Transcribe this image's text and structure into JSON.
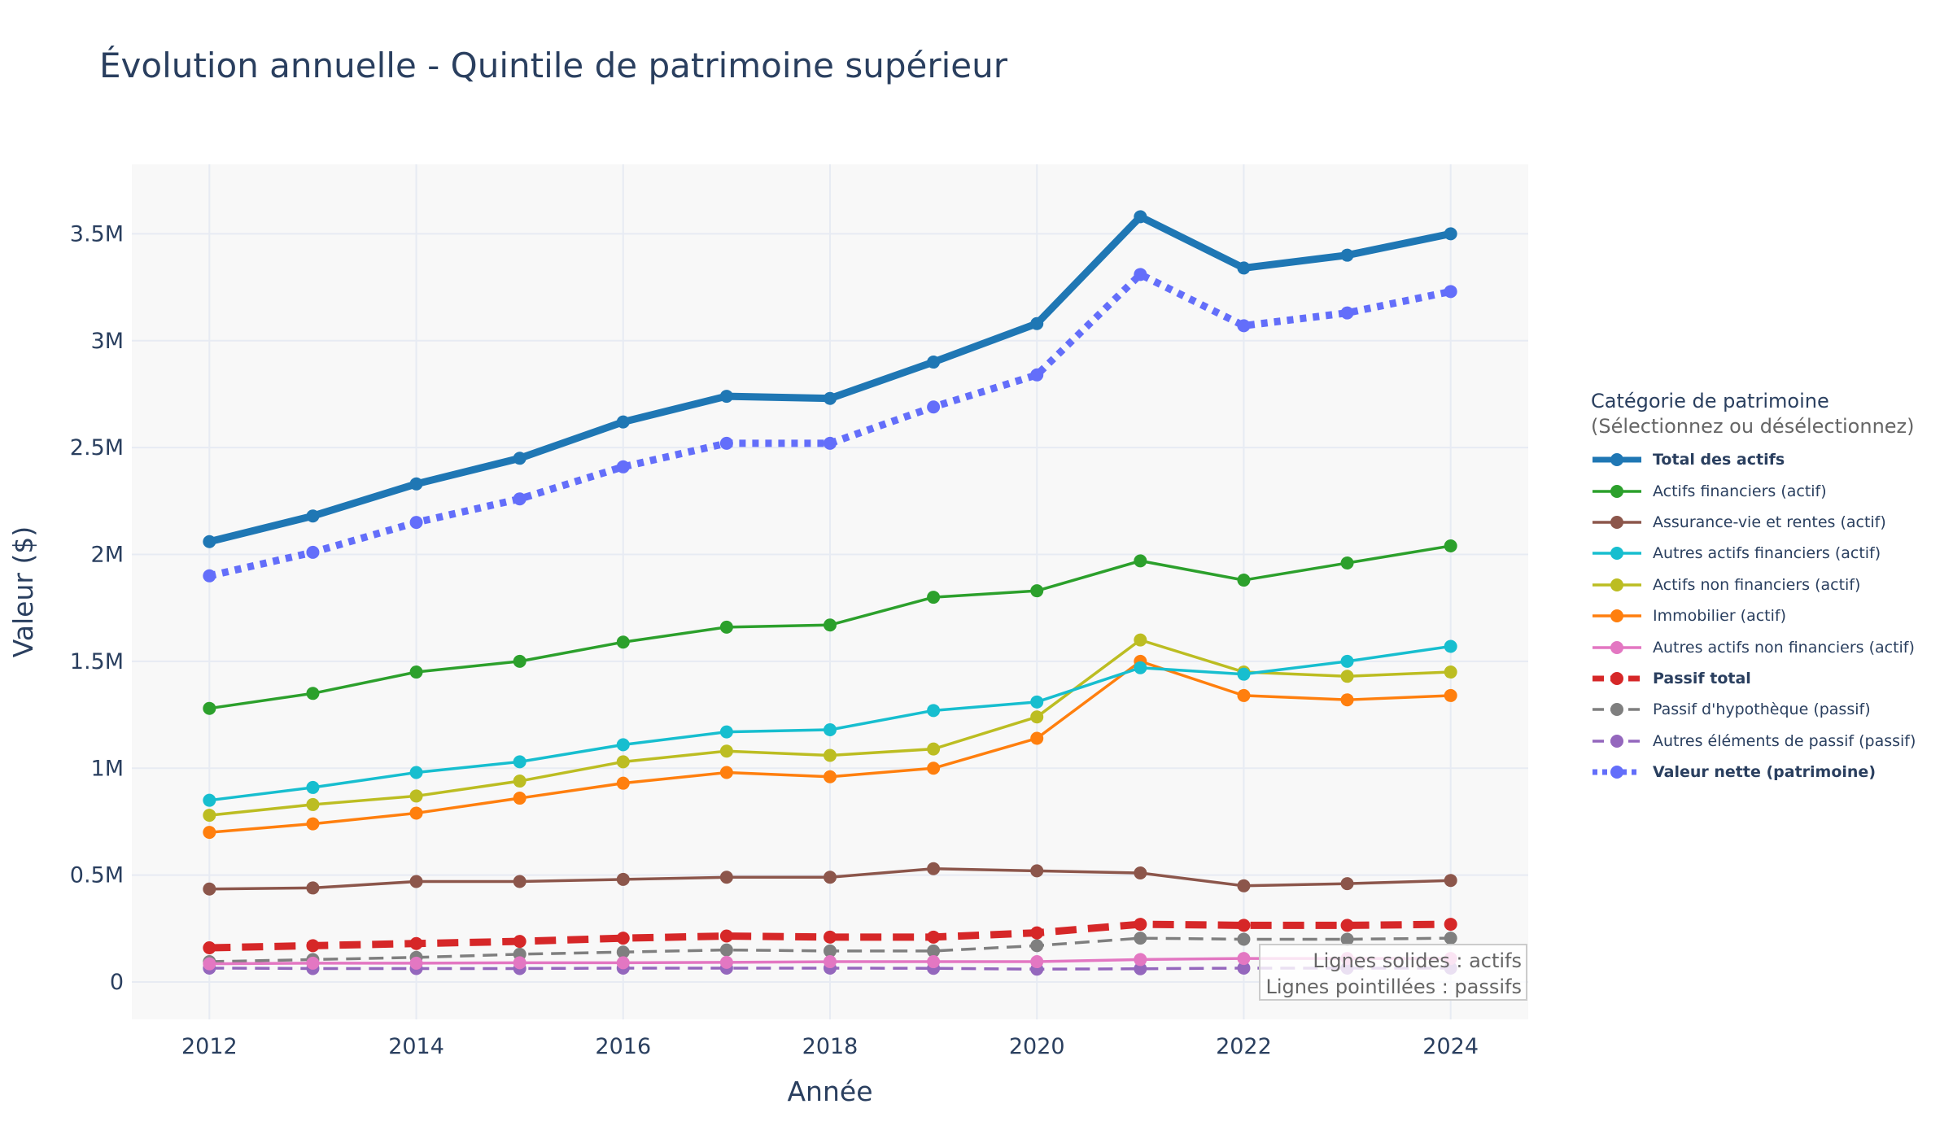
{
  "chart_data": {
    "type": "line",
    "title": "Évolution annuelle - Quintile de patrimoine supérieur",
    "xlabel": "Année",
    "ylabel": "Valeur ($)",
    "xlim": [
      2011.25,
      2024.75
    ],
    "ylim": [
      -175000,
      3825000
    ],
    "x": [
      2012,
      2013,
      2014,
      2015,
      2016,
      2017,
      2018,
      2019,
      2020,
      2021,
      2022,
      2023,
      2024
    ],
    "x_ticks": [
      2012,
      2014,
      2016,
      2018,
      2020,
      2022,
      2024
    ],
    "y_ticks": [
      {
        "value": 0,
        "label": "0"
      },
      {
        "value": 500000,
        "label": "0.5M"
      },
      {
        "value": 1000000,
        "label": "1M"
      },
      {
        "value": 1500000,
        "label": "1.5M"
      },
      {
        "value": 2000000,
        "label": "2M"
      },
      {
        "value": 2500000,
        "label": "2.5M"
      },
      {
        "value": 3000000,
        "label": "3M"
      },
      {
        "value": 3500000,
        "label": "3.5M"
      }
    ],
    "grid": true,
    "legend_title": "Catégorie de patrimoine",
    "legend_subtitle": "(Sélectionnez ou désélectionnez)",
    "legend_position": "right",
    "annotation": [
      "Lignes solides : actifs",
      "Lignes pointillées : passifs"
    ],
    "series": [
      {
        "name": "Total des actifs",
        "color": "#1f77b4",
        "dash": "solid",
        "bold": true,
        "values": [
          2060000,
          2180000,
          2330000,
          2450000,
          2620000,
          2740000,
          2730000,
          2900000,
          3080000,
          3580000,
          3340000,
          3400000,
          3500000
        ]
      },
      {
        "name": "Actifs financiers (actif)",
        "color": "#2ca02c",
        "dash": "solid",
        "bold": false,
        "values": [
          1280000,
          1350000,
          1450000,
          1500000,
          1590000,
          1660000,
          1670000,
          1800000,
          1830000,
          1970000,
          1880000,
          1960000,
          2040000
        ]
      },
      {
        "name": "Assurance-vie et rentes (actif)",
        "color": "#8c564b",
        "dash": "solid",
        "bold": false,
        "values": [
          435000,
          440000,
          470000,
          470000,
          480000,
          490000,
          490000,
          530000,
          520000,
          510000,
          450000,
          460000,
          475000
        ]
      },
      {
        "name": "Autres actifs financiers (actif)",
        "color": "#17becf",
        "dash": "solid",
        "bold": false,
        "values": [
          850000,
          910000,
          980000,
          1030000,
          1110000,
          1170000,
          1180000,
          1270000,
          1310000,
          1470000,
          1440000,
          1500000,
          1570000
        ]
      },
      {
        "name": "Actifs non financiers (actif)",
        "color": "#bcbd22",
        "dash": "solid",
        "bold": false,
        "values": [
          780000,
          830000,
          870000,
          940000,
          1030000,
          1080000,
          1060000,
          1090000,
          1240000,
          1600000,
          1450000,
          1430000,
          1450000
        ]
      },
      {
        "name": "Immobilier (actif)",
        "color": "#ff7f0e",
        "dash": "solid",
        "bold": false,
        "values": [
          700000,
          740000,
          790000,
          860000,
          930000,
          980000,
          960000,
          1000000,
          1140000,
          1500000,
          1340000,
          1320000,
          1340000
        ]
      },
      {
        "name": "Autres actifs non financiers (actif)",
        "color": "#e377c2",
        "dash": "solid",
        "bold": false,
        "values": [
          85000,
          88000,
          88000,
          90000,
          90000,
          92000,
          95000,
          95000,
          95000,
          105000,
          110000,
          110000,
          110000
        ]
      },
      {
        "name": "Passif total",
        "color": "#d62728",
        "dash": "dash",
        "bold": true,
        "values": [
          160000,
          170000,
          180000,
          190000,
          205000,
          215000,
          210000,
          210000,
          230000,
          270000,
          265000,
          265000,
          270000
        ]
      },
      {
        "name": "Passif d'hypothèque (passif)",
        "color": "#7f7f7f",
        "dash": "dash",
        "bold": false,
        "values": [
          95000,
          105000,
          115000,
          130000,
          140000,
          150000,
          145000,
          145000,
          170000,
          205000,
          200000,
          200000,
          205000
        ]
      },
      {
        "name": "Autres éléments de passif (passif)",
        "color": "#9467bd",
        "dash": "dash",
        "bold": false,
        "values": [
          65000,
          63000,
          63000,
          63000,
          65000,
          65000,
          65000,
          64000,
          60000,
          62000,
          65000,
          65000,
          65000
        ]
      },
      {
        "name": "Valeur nette (patrimoine)",
        "color": "#636efa",
        "dash": "dot",
        "bold": true,
        "values": [
          1900000,
          2010000,
          2150000,
          2260000,
          2410000,
          2520000,
          2520000,
          2690000,
          2840000,
          3310000,
          3070000,
          3130000,
          3230000
        ]
      }
    ]
  }
}
